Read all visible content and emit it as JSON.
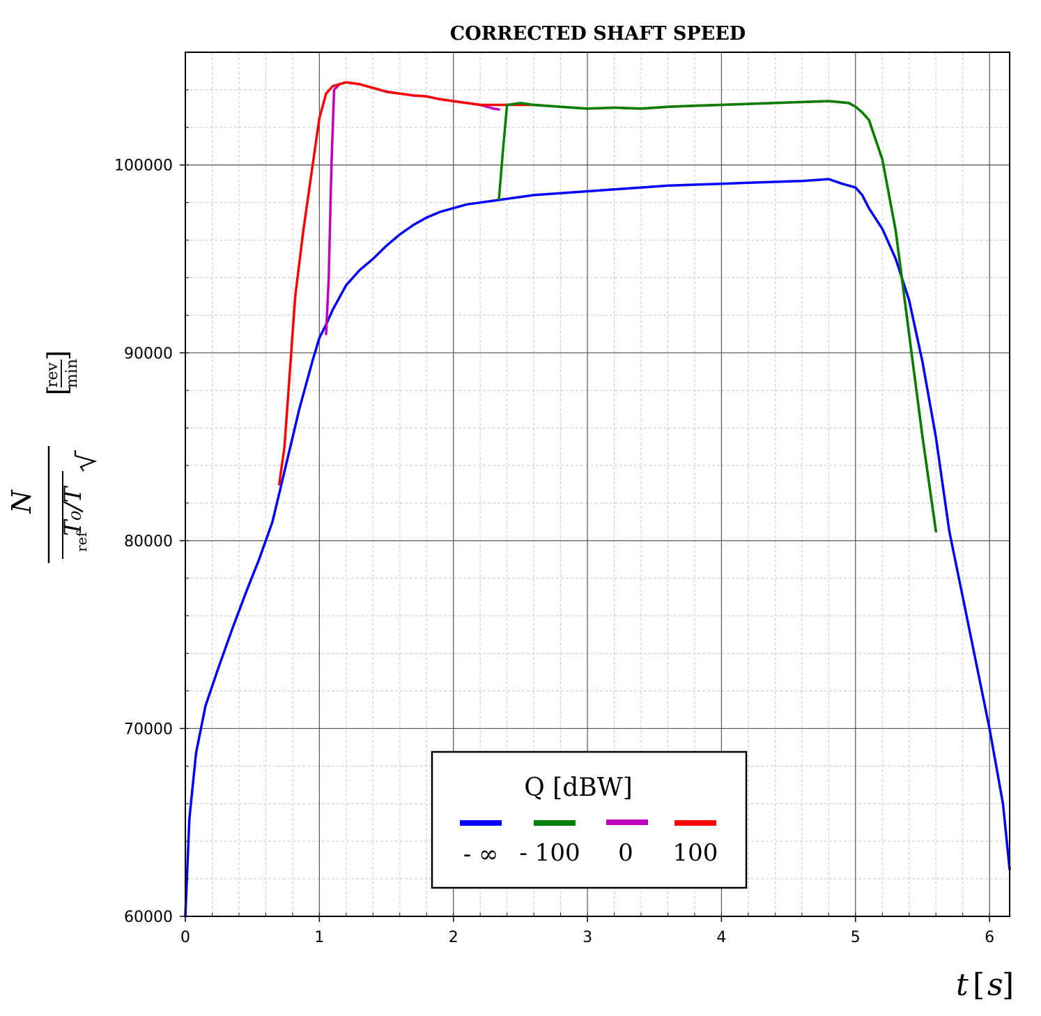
{
  "chart_data": {
    "type": "line",
    "title": "CORRECTED SHAFT SPEED",
    "xlabel": "t [s]",
    "ylabel": {
      "numerator": "N",
      "denominator": "√T0/Tref",
      "unit_numerator": "rev",
      "unit_denominator": "min"
    },
    "xlim": [
      0,
      6.15
    ],
    "ylim": [
      60000,
      106000
    ],
    "x_ticks": [
      0,
      1,
      2,
      3,
      4,
      5,
      6
    ],
    "y_ticks": [
      60000,
      70000,
      80000,
      90000,
      100000
    ],
    "x_tick_labels": [
      "0",
      "1",
      "2",
      "3",
      "4",
      "5",
      "6"
    ],
    "y_tick_labels": [
      "60000",
      "70000",
      "80000",
      "90000",
      "100000"
    ],
    "grid": true,
    "minor_grid": true,
    "legend": {
      "title": "Q [dBW]",
      "placement": "lower-center"
    },
    "series": [
      {
        "name": "- ∞",
        "color": "#0000ff",
        "x": [
          0,
          0.03,
          0.08,
          0.15,
          0.25,
          0.35,
          0.45,
          0.55,
          0.65,
          0.75,
          0.85,
          0.95,
          1.0,
          1.05,
          1.1,
          1.2,
          1.3,
          1.4,
          1.5,
          1.6,
          1.7,
          1.8,
          1.9,
          2.0,
          2.1,
          2.2,
          2.3,
          2.4,
          2.5,
          2.6,
          2.8,
          3.0,
          3.2,
          3.4,
          3.6,
          3.8,
          4.0,
          4.2,
          4.4,
          4.6,
          4.8,
          4.9,
          5.0,
          5.05,
          5.1,
          5.2,
          5.3,
          5.4,
          5.5,
          5.6,
          5.7,
          5.8,
          5.9,
          6.0,
          6.1,
          6.15
        ],
        "y": [
          60000,
          65200,
          68700,
          71200,
          73300,
          75300,
          77200,
          79000,
          81000,
          84000,
          87000,
          89600,
          90800,
          91500,
          92300,
          93600,
          94400,
          95000,
          95700,
          96300,
          96800,
          97200,
          97500,
          97700,
          97900,
          98000,
          98100,
          98200,
          98300,
          98400,
          98500,
          98600,
          98700,
          98800,
          98900,
          98950,
          99000,
          99050,
          99100,
          99150,
          99250,
          99000,
          98800,
          98400,
          97700,
          96600,
          95000,
          92800,
          89500,
          85500,
          80500,
          77000,
          73500,
          70000,
          66000,
          62500
        ]
      },
      {
        "name": "- 100",
        "color": "#008000",
        "x": [
          2.34,
          2.37,
          2.4,
          2.5,
          2.6,
          2.8,
          3.0,
          3.2,
          3.4,
          3.6,
          3.8,
          4.0,
          4.2,
          4.4,
          4.6,
          4.8,
          4.95,
          5.0,
          5.05,
          5.1,
          5.2,
          5.3,
          5.4,
          5.5,
          5.6
        ],
        "y": [
          98200,
          100800,
          103200,
          103300,
          103200,
          103100,
          103000,
          103050,
          103000,
          103100,
          103150,
          103200,
          103250,
          103300,
          103350,
          103400,
          103300,
          103100,
          102800,
          102400,
          100300,
          96500,
          91000,
          85500,
          80500
        ]
      },
      {
        "name": "0",
        "color": "#c000c0",
        "x": [
          1.05,
          1.07,
          1.09,
          1.11,
          1.15,
          1.2,
          1.3,
          1.4,
          1.5,
          1.6,
          1.7,
          1.8,
          1.9,
          2.0,
          2.1,
          2.2,
          2.3,
          2.34
        ],
        "y": [
          91000,
          94000,
          100000,
          104000,
          104300,
          104400,
          104300,
          104100,
          103900,
          103800,
          103700,
          103650,
          103500,
          103400,
          103300,
          103200,
          103000,
          102950
        ]
      },
      {
        "name": "100",
        "color": "#ff0000",
        "x": [
          0.7,
          0.74,
          0.78,
          0.82,
          0.88,
          0.94,
          1.0,
          1.05,
          1.1,
          1.15,
          1.2,
          1.3,
          1.4,
          1.5,
          1.6,
          1.7,
          1.8,
          1.9,
          2.0,
          2.2,
          2.4,
          2.6,
          2.8,
          3.0,
          3.2,
          3.4,
          3.6,
          3.8,
          4.0,
          4.2,
          4.4,
          4.6,
          4.8,
          4.95,
          5.0,
          5.05,
          5.1,
          5.2,
          5.3,
          5.4,
          5.5,
          5.6
        ],
        "y": [
          83000,
          85000,
          89000,
          93000,
          96500,
          99500,
          102500,
          103800,
          104200,
          104300,
          104400,
          104300,
          104100,
          103900,
          103800,
          103700,
          103650,
          103500,
          103400,
          103200,
          103200,
          103200,
          103100,
          103000,
          103050,
          103000,
          103100,
          103150,
          103200,
          103250,
          103300,
          103350,
          103400,
          103300,
          103100,
          102800,
          102400,
          100300,
          96500,
          91000,
          85500,
          80500
        ]
      }
    ]
  }
}
